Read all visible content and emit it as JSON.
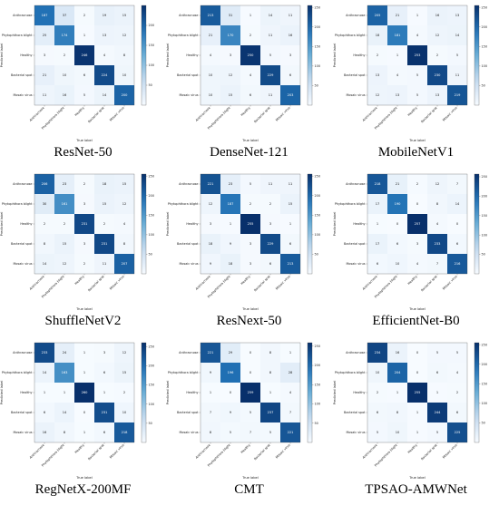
{
  "chart_data": [
    {
      "type": "heatmap",
      "title": "ResNet-50",
      "xlabel": "True label",
      "ylabel": "Predicted label",
      "categories": [
        "Anthracnose",
        "Phytophthora blight",
        "Healthy",
        "Bacterial spot",
        "Mosaic virus"
      ],
      "values": [
        [
          187,
          37,
          2,
          19,
          15
        ],
        [
          25,
          174,
          1,
          13,
          12
        ],
        [
          3,
          2,
          246,
          4,
          8
        ],
        [
          21,
          10,
          6,
          224,
          10
        ],
        [
          11,
          16,
          5,
          14,
          200
        ]
      ],
      "colorbar_ticks": [
        50,
        100,
        150,
        200
      ],
      "vmax": 250
    },
    {
      "type": "heatmap",
      "title": "DenseNet-121",
      "xlabel": "True label",
      "ylabel": "Predicted label",
      "categories": [
        "Anthracnose",
        "Phytophthora blight",
        "Healthy",
        "Bacterial spot",
        "Mosaic virus"
      ],
      "values": [
        [
          213,
          31,
          1,
          14,
          11
        ],
        [
          21,
          170,
          2,
          11,
          16
        ],
        [
          4,
          3,
          250,
          5,
          3
        ],
        [
          10,
          12,
          4,
          229,
          6
        ],
        [
          10,
          15,
          6,
          11,
          203
        ]
      ],
      "colorbar_ticks": [
        50,
        100,
        150,
        200,
        250
      ],
      "vmax": 255
    },
    {
      "type": "heatmap",
      "title": "MobileNetV1",
      "xlabel": "True label",
      "ylabel": "Predicted label",
      "categories": [
        "Anthracnose",
        "Phytophthora blight",
        "Healthy",
        "Bacterial spot",
        "Mosaic virus"
      ],
      "values": [
        [
          205,
          21,
          1,
          16,
          13
        ],
        [
          18,
          181,
          4,
          12,
          14
        ],
        [
          2,
          1,
          253,
          2,
          5
        ],
        [
          13,
          4,
          5,
          230,
          11
        ],
        [
          12,
          13,
          5,
          13,
          219
        ]
      ],
      "colorbar_ticks": [
        50,
        100,
        150,
        200,
        250
      ],
      "vmax": 255
    },
    {
      "type": "heatmap",
      "title": "ShuffleNetV2",
      "xlabel": "True label",
      "ylabel": "Predicted label",
      "categories": [
        "Anthracnose",
        "Phytophthora blight",
        "Healthy",
        "Bacterial spot",
        "Mosaic virus"
      ],
      "values": [
        [
          206,
          23,
          2,
          18,
          15
        ],
        [
          30,
          161,
          3,
          15,
          12
        ],
        [
          2,
          2,
          231,
          2,
          4
        ],
        [
          8,
          15,
          3,
          231,
          8
        ],
        [
          14,
          12,
          2,
          11,
          207
        ]
      ],
      "colorbar_ticks": [
        50,
        100,
        150,
        200,
        250
      ],
      "vmax": 255
    },
    {
      "type": "heatmap",
      "title": "ResNext-50",
      "xlabel": "True label",
      "ylabel": "Predicted label",
      "categories": [
        "Anthracnose",
        "Phytophthora blight",
        "Healthy",
        "Bacterial spot",
        "Mosaic virus"
      ],
      "values": [
        [
          221,
          23,
          5,
          11,
          11
        ],
        [
          12,
          187,
          2,
          2,
          15
        ],
        [
          3,
          1,
          255,
          3,
          1
        ],
        [
          18,
          9,
          3,
          229,
          6
        ],
        [
          9,
          18,
          3,
          6,
          213
        ]
      ],
      "colorbar_ticks": [
        50,
        100,
        150,
        200,
        250
      ],
      "vmax": 255
    },
    {
      "type": "heatmap",
      "title": "EfficientNet-B0",
      "xlabel": "True label",
      "ylabel": "Predicted label",
      "categories": [
        "Anthracnose",
        "Phytophthora blight",
        "Healthy",
        "Bacterial spot",
        "Mosaic virus"
      ],
      "values": [
        [
          218,
          21,
          2,
          12,
          7
        ],
        [
          17,
          190,
          0,
          8,
          14
        ],
        [
          1,
          0,
          257,
          4,
          0
        ],
        [
          17,
          6,
          3,
          233,
          6
        ],
        [
          6,
          10,
          4,
          7,
          216
        ]
      ],
      "colorbar_ticks": [
        50,
        100,
        150,
        200,
        250
      ],
      "vmax": 257
    },
    {
      "type": "heatmap",
      "title": "RegNetX-200MF",
      "xlabel": "True label",
      "ylabel": "Predicted label",
      "categories": [
        "Anthracnose",
        "Phytophthora blight",
        "Healthy",
        "Bacterial spot",
        "Mosaic virus"
      ],
      "values": [
        [
          233,
          24,
          1,
          3,
          12
        ],
        [
          14,
          163,
          1,
          6,
          15
        ],
        [
          1,
          1,
          260,
          1,
          2
        ],
        [
          6,
          14,
          0,
          231,
          10
        ],
        [
          16,
          8,
          1,
          6,
          218
        ]
      ],
      "colorbar_ticks": [
        50,
        100,
        150,
        200,
        250
      ],
      "vmax": 260
    },
    {
      "type": "heatmap",
      "title": "CMT",
      "xlabel": "True label",
      "ylabel": "Predicted label",
      "categories": [
        "Anthracnose",
        "Phytophthora blight",
        "Healthy",
        "Bacterial spot",
        "Mosaic virus"
      ],
      "values": [
        [
          221,
          29,
          0,
          8,
          1
        ],
        [
          9,
          196,
          0,
          8,
          28
        ],
        [
          1,
          0,
          259,
          1,
          4
        ],
        [
          7,
          9,
          5,
          237,
          7
        ],
        [
          8,
          5,
          7,
          5,
          221
        ]
      ],
      "colorbar_ticks": [
        50,
        100,
        150,
        200,
        250
      ],
      "vmax": 259
    },
    {
      "type": "heatmap",
      "title": "TPSAO-AMWNet",
      "xlabel": "True label",
      "ylabel": "Predicted label",
      "categories": [
        "Anthracnose",
        "Phytophthora blight",
        "Healthy",
        "Bacterial spot",
        "Mosaic virus"
      ],
      "values": [
        [
          234,
          16,
          0,
          5,
          5
        ],
        [
          10,
          204,
          0,
          6,
          4
        ],
        [
          2,
          1,
          255,
          1,
          2
        ],
        [
          6,
          8,
          1,
          244,
          6
        ],
        [
          5,
          10,
          1,
          5,
          225
        ]
      ],
      "colorbar_ticks": [
        50,
        100,
        150,
        200,
        250
      ],
      "vmax": 255
    }
  ]
}
